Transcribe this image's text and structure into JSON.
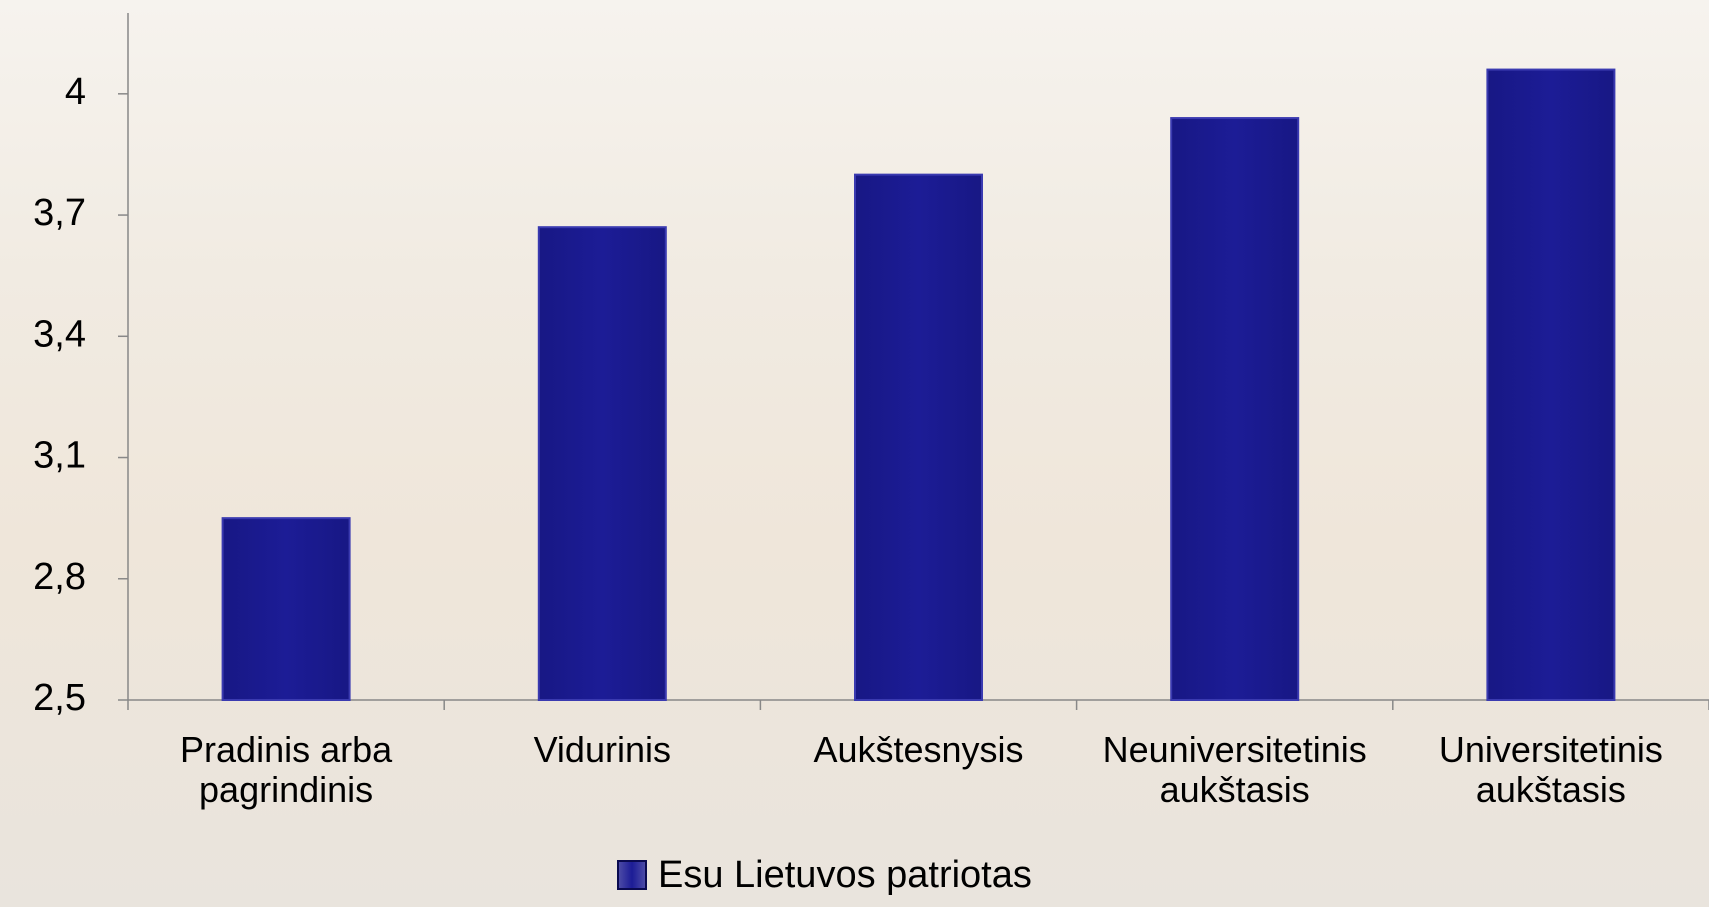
{
  "chart_data": {
    "type": "bar",
    "categories": [
      "Pradinis arba pagrindinis",
      "Vidurinis",
      "Aukštesnysis",
      "Neuniversitetinis aukštasis",
      "Universitetinis aukštasis"
    ],
    "series": [
      {
        "name": "Esu Lietuvos patriotas",
        "color": "#1c1c96",
        "values": [
          2.95,
          3.67,
          3.8,
          3.94,
          4.06
        ]
      }
    ],
    "ylim": [
      2.5,
      4.2
    ],
    "yticks": [
      {
        "value": 2.5,
        "label": "2,5"
      },
      {
        "value": 2.8,
        "label": "2,8"
      },
      {
        "value": 3.1,
        "label": "3,1"
      },
      {
        "value": 3.4,
        "label": "3,4"
      },
      {
        "value": 3.7,
        "label": "3,7"
      },
      4
    ],
    "legend": "bottom"
  }
}
